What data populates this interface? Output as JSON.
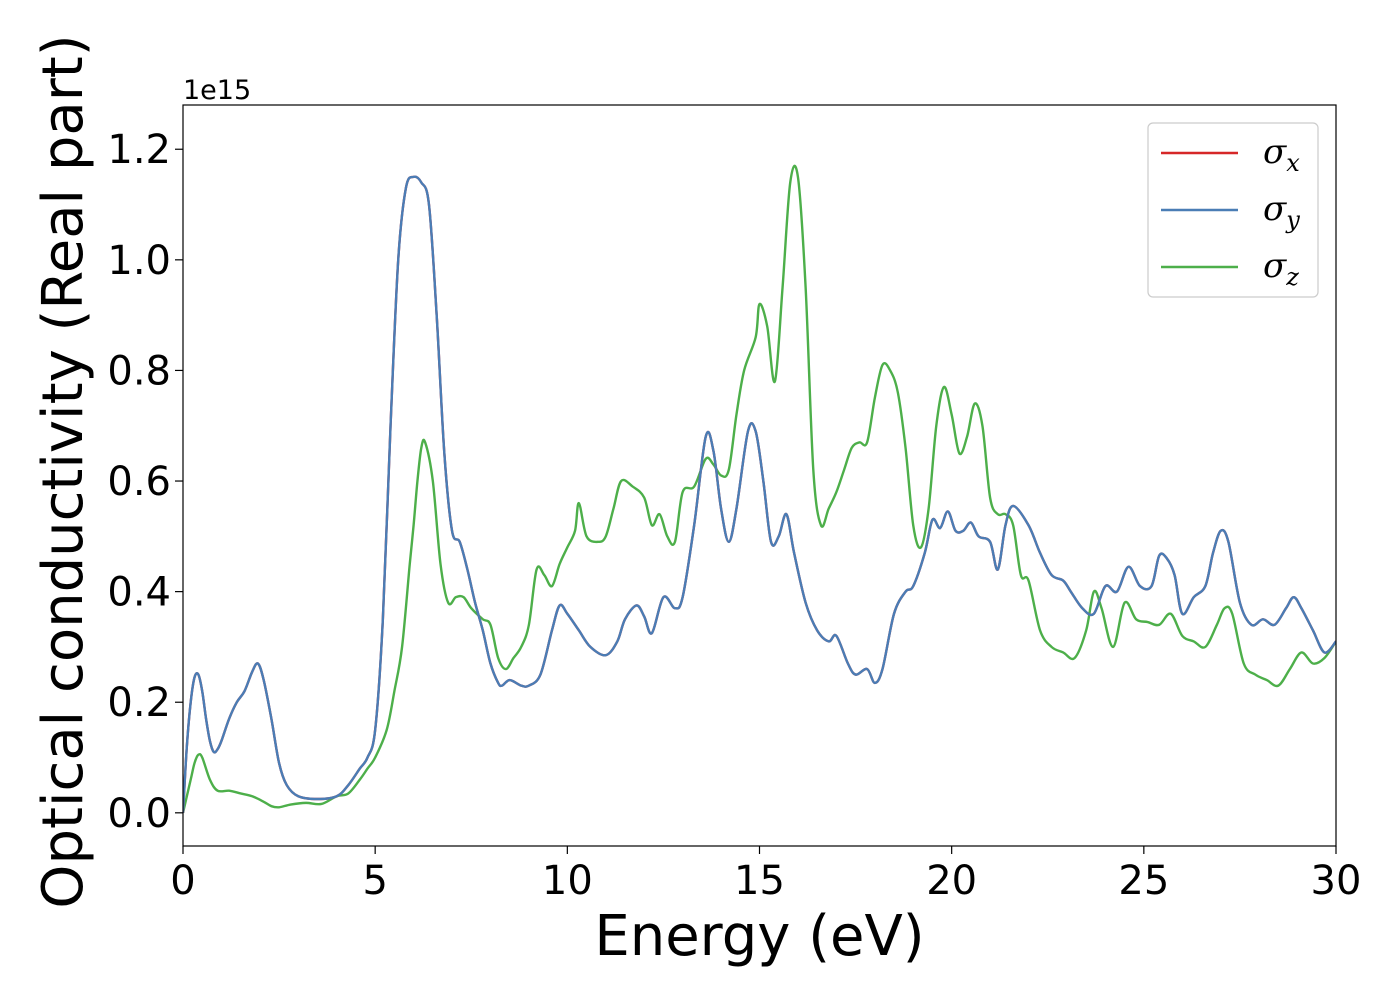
{
  "chart_data": {
    "type": "line",
    "xlabel": "Energy (eV)",
    "ylabel": "Optical conductivity (Real part)",
    "y_offset_label": "1e15",
    "xlim": [
      0,
      30
    ],
    "ylim": [
      -0.06,
      1.28
    ],
    "x_ticks": [
      0,
      5,
      10,
      15,
      20,
      25,
      30
    ],
    "x_tick_labels": [
      "0",
      "5",
      "10",
      "15",
      "20",
      "25",
      "30"
    ],
    "y_ticks": [
      0.0,
      0.2,
      0.4,
      0.6,
      0.8,
      1.0,
      1.2
    ],
    "y_tick_labels": [
      "0.0",
      "0.2",
      "0.4",
      "0.6",
      "0.8",
      "1.0",
      "1.2"
    ],
    "grid": false,
    "legend_position": "top-right",
    "series": [
      {
        "name": "σ",
        "subscript": "x",
        "color": "#d62728",
        "x": [
          0,
          0.1,
          0.2,
          0.3,
          0.4,
          0.5,
          0.6,
          0.7,
          0.8,
          0.9,
          1.0,
          1.2,
          1.4,
          1.6,
          1.8,
          1.95,
          2.1,
          2.3,
          2.5,
          2.7,
          3.0,
          3.5,
          4.0,
          4.3,
          4.6,
          4.8,
          5.0,
          5.2,
          5.4,
          5.6,
          5.8,
          6.0,
          6.2,
          6.4,
          6.6,
          6.8,
          7.0,
          7.2,
          7.4,
          7.6,
          7.8,
          8.0,
          8.2,
          8.3,
          8.5,
          8.8,
          9.0,
          9.3,
          9.6,
          9.8,
          10.0,
          10.3,
          10.6,
          11.0,
          11.3,
          11.5,
          11.8,
          12.0,
          12.2,
          12.5,
          12.8,
          13.0,
          13.3,
          13.6,
          13.8,
          14.0,
          14.2,
          14.4,
          14.7,
          14.9,
          15.1,
          15.3,
          15.5,
          15.7,
          15.9,
          16.2,
          16.5,
          16.8,
          17.0,
          17.3,
          17.5,
          17.8,
          18.0,
          18.2,
          18.5,
          18.8,
          19.0,
          19.3,
          19.5,
          19.7,
          19.9,
          20.1,
          20.3,
          20.5,
          20.7,
          21.0,
          21.2,
          21.4,
          21.6,
          22.0,
          22.3,
          22.6,
          22.9,
          23.1,
          23.4,
          23.7,
          24.0,
          24.3,
          24.6,
          24.9,
          25.2,
          25.4,
          25.6,
          25.8,
          26.0,
          26.3,
          26.6,
          26.8,
          27.0,
          27.2,
          27.5,
          27.8,
          28.1,
          28.4,
          28.7,
          28.9,
          29.1,
          29.4,
          29.7,
          30.0
        ],
        "y": [
          0.0,
          0.12,
          0.2,
          0.245,
          0.25,
          0.22,
          0.17,
          0.13,
          0.11,
          0.115,
          0.13,
          0.17,
          0.2,
          0.22,
          0.255,
          0.27,
          0.24,
          0.17,
          0.09,
          0.05,
          0.03,
          0.025,
          0.03,
          0.05,
          0.08,
          0.1,
          0.15,
          0.35,
          0.7,
          1.0,
          1.13,
          1.15,
          1.14,
          1.1,
          0.9,
          0.65,
          0.51,
          0.49,
          0.44,
          0.38,
          0.33,
          0.27,
          0.235,
          0.23,
          0.24,
          0.23,
          0.23,
          0.25,
          0.33,
          0.375,
          0.36,
          0.33,
          0.3,
          0.285,
          0.31,
          0.35,
          0.375,
          0.355,
          0.325,
          0.39,
          0.37,
          0.39,
          0.52,
          0.68,
          0.655,
          0.55,
          0.49,
          0.55,
          0.69,
          0.69,
          0.6,
          0.49,
          0.5,
          0.54,
          0.47,
          0.38,
          0.33,
          0.31,
          0.32,
          0.27,
          0.25,
          0.26,
          0.235,
          0.26,
          0.36,
          0.4,
          0.41,
          0.47,
          0.53,
          0.515,
          0.545,
          0.51,
          0.51,
          0.525,
          0.5,
          0.49,
          0.44,
          0.52,
          0.555,
          0.52,
          0.47,
          0.43,
          0.42,
          0.4,
          0.37,
          0.36,
          0.41,
          0.4,
          0.445,
          0.41,
          0.41,
          0.465,
          0.46,
          0.43,
          0.36,
          0.39,
          0.41,
          0.47,
          0.51,
          0.49,
          0.38,
          0.34,
          0.35,
          0.34,
          0.37,
          0.39,
          0.37,
          0.33,
          0.29,
          0.31
        ]
      },
      {
        "name": "σ",
        "subscript": "y",
        "color": "#4a7db5",
        "x": [
          0,
          0.1,
          0.2,
          0.3,
          0.4,
          0.5,
          0.6,
          0.7,
          0.8,
          0.9,
          1.0,
          1.2,
          1.4,
          1.6,
          1.8,
          1.95,
          2.1,
          2.3,
          2.5,
          2.7,
          3.0,
          3.5,
          4.0,
          4.3,
          4.6,
          4.8,
          5.0,
          5.2,
          5.4,
          5.6,
          5.8,
          6.0,
          6.2,
          6.4,
          6.6,
          6.8,
          7.0,
          7.2,
          7.4,
          7.6,
          7.8,
          8.0,
          8.2,
          8.3,
          8.5,
          8.8,
          9.0,
          9.3,
          9.6,
          9.8,
          10.0,
          10.3,
          10.6,
          11.0,
          11.3,
          11.5,
          11.8,
          12.0,
          12.2,
          12.5,
          12.8,
          13.0,
          13.3,
          13.6,
          13.8,
          14.0,
          14.2,
          14.4,
          14.7,
          14.9,
          15.1,
          15.3,
          15.5,
          15.7,
          15.9,
          16.2,
          16.5,
          16.8,
          17.0,
          17.3,
          17.5,
          17.8,
          18.0,
          18.2,
          18.5,
          18.8,
          19.0,
          19.3,
          19.5,
          19.7,
          19.9,
          20.1,
          20.3,
          20.5,
          20.7,
          21.0,
          21.2,
          21.4,
          21.6,
          22.0,
          22.3,
          22.6,
          22.9,
          23.1,
          23.4,
          23.7,
          24.0,
          24.3,
          24.6,
          24.9,
          25.2,
          25.4,
          25.6,
          25.8,
          26.0,
          26.3,
          26.6,
          26.8,
          27.0,
          27.2,
          27.5,
          27.8,
          28.1,
          28.4,
          28.7,
          28.9,
          29.1,
          29.4,
          29.7,
          30.0
        ],
        "y": [
          0.0,
          0.12,
          0.2,
          0.245,
          0.25,
          0.22,
          0.17,
          0.13,
          0.11,
          0.115,
          0.13,
          0.17,
          0.2,
          0.22,
          0.255,
          0.27,
          0.24,
          0.17,
          0.09,
          0.05,
          0.03,
          0.025,
          0.03,
          0.05,
          0.08,
          0.1,
          0.15,
          0.35,
          0.7,
          1.0,
          1.13,
          1.15,
          1.14,
          1.1,
          0.9,
          0.65,
          0.51,
          0.49,
          0.44,
          0.38,
          0.33,
          0.27,
          0.235,
          0.23,
          0.24,
          0.23,
          0.23,
          0.25,
          0.33,
          0.375,
          0.36,
          0.33,
          0.3,
          0.285,
          0.31,
          0.35,
          0.375,
          0.355,
          0.325,
          0.39,
          0.37,
          0.39,
          0.52,
          0.68,
          0.655,
          0.55,
          0.49,
          0.55,
          0.69,
          0.69,
          0.6,
          0.49,
          0.5,
          0.54,
          0.47,
          0.38,
          0.33,
          0.31,
          0.32,
          0.27,
          0.25,
          0.26,
          0.235,
          0.26,
          0.36,
          0.4,
          0.41,
          0.47,
          0.53,
          0.515,
          0.545,
          0.51,
          0.51,
          0.525,
          0.5,
          0.49,
          0.44,
          0.52,
          0.555,
          0.52,
          0.47,
          0.43,
          0.42,
          0.4,
          0.37,
          0.36,
          0.41,
          0.4,
          0.445,
          0.41,
          0.41,
          0.465,
          0.46,
          0.43,
          0.36,
          0.39,
          0.41,
          0.47,
          0.51,
          0.49,
          0.38,
          0.34,
          0.35,
          0.34,
          0.37,
          0.39,
          0.37,
          0.33,
          0.29,
          0.31
        ]
      },
      {
        "name": "σ",
        "subscript": "z",
        "color": "#4daf4a",
        "x": [
          0,
          0.2,
          0.3,
          0.4,
          0.5,
          0.7,
          0.9,
          1.2,
          1.5,
          1.8,
          2.1,
          2.3,
          2.5,
          2.8,
          3.2,
          3.6,
          4.0,
          4.3,
          4.6,
          4.8,
          5.0,
          5.3,
          5.5,
          5.7,
          5.9,
          6.0,
          6.1,
          6.2,
          6.3,
          6.5,
          6.7,
          6.9,
          7.1,
          7.3,
          7.5,
          7.8,
          8.0,
          8.2,
          8.4,
          8.6,
          8.8,
          9.0,
          9.2,
          9.4,
          9.6,
          9.8,
          10.0,
          10.2,
          10.3,
          10.5,
          10.8,
          11.0,
          11.2,
          11.4,
          11.7,
          12.0,
          12.2,
          12.4,
          12.6,
          12.8,
          13.0,
          13.3,
          13.6,
          13.8,
          14.0,
          14.2,
          14.4,
          14.6,
          14.9,
          15.0,
          15.2,
          15.4,
          15.6,
          15.8,
          16.0,
          16.2,
          16.4,
          16.6,
          16.8,
          17.0,
          17.2,
          17.4,
          17.6,
          17.8,
          18.0,
          18.2,
          18.4,
          18.6,
          18.8,
          19.0,
          19.2,
          19.4,
          19.6,
          19.8,
          20.0,
          20.2,
          20.4,
          20.6,
          20.8,
          21.0,
          21.2,
          21.4,
          21.6,
          21.8,
          22.0,
          22.3,
          22.6,
          22.9,
          23.2,
          23.5,
          23.7,
          23.9,
          24.2,
          24.5,
          24.8,
          25.1,
          25.4,
          25.7,
          26.0,
          26.3,
          26.6,
          26.9,
          27.1,
          27.3,
          27.6,
          27.9,
          28.2,
          28.5,
          28.8,
          29.1,
          29.4,
          29.7,
          30.0
        ],
        "y": [
          0.0,
          0.06,
          0.09,
          0.105,
          0.1,
          0.06,
          0.04,
          0.04,
          0.035,
          0.03,
          0.02,
          0.012,
          0.01,
          0.015,
          0.018,
          0.016,
          0.03,
          0.035,
          0.06,
          0.08,
          0.1,
          0.15,
          0.22,
          0.3,
          0.45,
          0.52,
          0.6,
          0.66,
          0.67,
          0.6,
          0.45,
          0.38,
          0.39,
          0.39,
          0.37,
          0.35,
          0.34,
          0.28,
          0.26,
          0.28,
          0.3,
          0.34,
          0.44,
          0.43,
          0.41,
          0.45,
          0.48,
          0.51,
          0.56,
          0.5,
          0.49,
          0.5,
          0.55,
          0.6,
          0.59,
          0.57,
          0.52,
          0.54,
          0.5,
          0.49,
          0.58,
          0.59,
          0.64,
          0.63,
          0.61,
          0.62,
          0.72,
          0.8,
          0.86,
          0.92,
          0.88,
          0.78,
          0.95,
          1.14,
          1.15,
          0.95,
          0.62,
          0.52,
          0.55,
          0.58,
          0.62,
          0.66,
          0.67,
          0.67,
          0.75,
          0.81,
          0.8,
          0.76,
          0.66,
          0.52,
          0.48,
          0.55,
          0.7,
          0.77,
          0.72,
          0.65,
          0.68,
          0.74,
          0.7,
          0.57,
          0.54,
          0.54,
          0.52,
          0.43,
          0.42,
          0.33,
          0.3,
          0.29,
          0.28,
          0.33,
          0.4,
          0.37,
          0.3,
          0.38,
          0.35,
          0.345,
          0.34,
          0.36,
          0.32,
          0.31,
          0.3,
          0.34,
          0.37,
          0.36,
          0.27,
          0.25,
          0.24,
          0.23,
          0.26,
          0.29,
          0.27,
          0.28,
          0.31
        ]
      }
    ]
  }
}
